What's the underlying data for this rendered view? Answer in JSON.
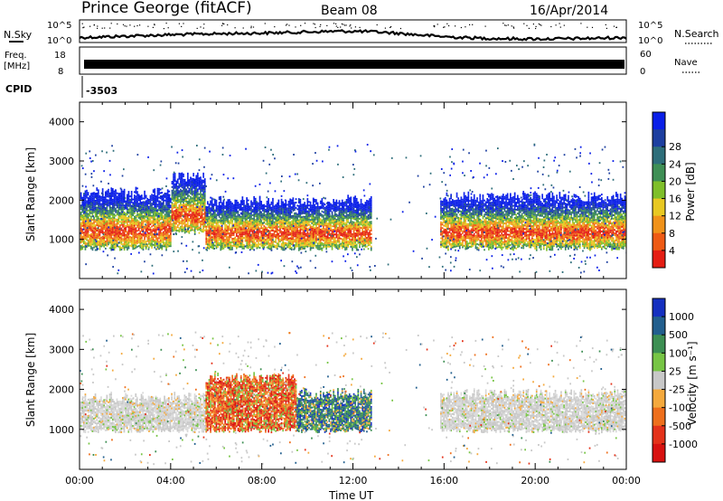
{
  "header": {
    "station": "Prince George (fitACF)",
    "beam": "Beam 08",
    "date": "16/Apr/2014"
  },
  "noise_panel": {
    "left_label": "N.Sky",
    "right_label": "N.Search",
    "left_ticks": [
      "10^5",
      "10^0"
    ],
    "right_ticks": [
      "10^5",
      "10^0"
    ],
    "sky_color": "#000000",
    "search_color": "#000000"
  },
  "freq_panel": {
    "left_label_1": "Freq.",
    "left_label_2": "[MHz]",
    "right_label": "Nave",
    "left_ticks": [
      "18",
      "8"
    ],
    "right_ticks": [
      "60",
      "0"
    ]
  },
  "cpid": {
    "label": "CPID",
    "value": "-3503"
  },
  "chart_data": [
    {
      "type": "heatmap",
      "name": "power",
      "ylabel": "Slant Range [km]",
      "xlabel": "",
      "y_ticks": [
        "1000",
        "2000",
        "3000",
        "4000"
      ],
      "ylim": [
        0,
        4500
      ],
      "xlim_hours": [
        0,
        24
      ],
      "colorbar": {
        "label": "Power [dB]",
        "ticks": [
          "4",
          "8",
          "12",
          "16",
          "20",
          "24",
          "28"
        ],
        "colors": [
          "#0a1fe8",
          "#1d3fa0",
          "#2e6e7a",
          "#3f8f55",
          "#7fbf2a",
          "#e8c822",
          "#f0921a",
          "#ee5a14",
          "#e51e14"
        ]
      },
      "echo_bands": [
        {
          "start_h": 0.0,
          "end_h": 4.0,
          "ymin": 700,
          "ymax": 2300
        },
        {
          "start_h": 4.0,
          "end_h": 5.5,
          "ymin": 1100,
          "ymax": 2700
        },
        {
          "start_h": 5.5,
          "end_h": 12.8,
          "ymin": 700,
          "ymax": 2100
        },
        {
          "start_h": 15.8,
          "end_h": 24.0,
          "ymin": 700,
          "ymax": 2200
        }
      ]
    },
    {
      "type": "heatmap",
      "name": "velocity",
      "ylabel": "Slant Range [km]",
      "xlabel": "Time UT",
      "x_ticks": [
        "00:00",
        "04:00",
        "08:00",
        "12:00",
        "16:00",
        "20:00",
        "00:00"
      ],
      "y_ticks": [
        "1000",
        "2000",
        "3000",
        "4000"
      ],
      "ylim": [
        0,
        4500
      ],
      "xlim_hours": [
        0,
        24
      ],
      "colorbar": {
        "label": "Velocity [m s⁻¹]",
        "ticks": [
          "1000",
          "500",
          "100",
          "25",
          "-25",
          "-100",
          "-500",
          "-1000"
        ],
        "colors": [
          "#1530c0",
          "#225f8e",
          "#3d8f53",
          "#77c545",
          "#c8c8c8",
          "#f4a93d",
          "#ee6f1c",
          "#e4321a",
          "#d81210"
        ]
      },
      "echo_bands": [
        {
          "start_h": 0.0,
          "end_h": 5.5,
          "ymin": 900,
          "ymax": 1900,
          "class": "ground"
        },
        {
          "start_h": 5.5,
          "end_h": 9.5,
          "ymin": 900,
          "ymax": 2400,
          "class": "negative"
        },
        {
          "start_h": 9.5,
          "end_h": 12.8,
          "ymin": 900,
          "ymax": 2000,
          "class": "positive"
        },
        {
          "start_h": 15.8,
          "end_h": 24.0,
          "ymin": 900,
          "ymax": 2000,
          "class": "ground"
        }
      ]
    }
  ]
}
